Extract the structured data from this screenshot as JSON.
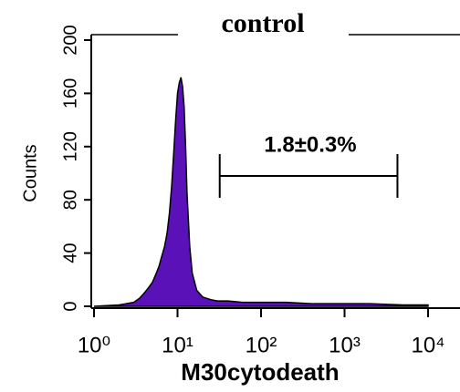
{
  "chart_data": {
    "type": "area",
    "title": "control",
    "xlabel": "M30cytodeath",
    "ylabel": "Counts",
    "annotation": "1.8±0.3%",
    "gate": [
      32,
      4300
    ],
    "xscale": "log",
    "color": "#5a12b8",
    "x": [
      1,
      2,
      3,
      3.5,
      4,
      4.5,
      5,
      5.5,
      6,
      6.5,
      7,
      7.5,
      8,
      8.5,
      9,
      9.5,
      10,
      10.5,
      11,
      11.5,
      12,
      12.5,
      13,
      14,
      15,
      17,
      20,
      25,
      30,
      40,
      60,
      100,
      200,
      400,
      1000,
      2000,
      5000,
      10000
    ],
    "values": [
      0,
      1,
      3,
      6,
      10,
      14,
      18,
      24,
      30,
      38,
      45,
      55,
      70,
      90,
      115,
      140,
      160,
      168,
      172,
      165,
      150,
      120,
      85,
      45,
      25,
      12,
      7,
      5,
      4,
      4,
      3,
      3,
      3,
      2,
      2,
      2,
      1,
      1
    ],
    "xlim": [
      1,
      10000
    ],
    "ylim": [
      0,
      200
    ],
    "xticks": [
      {
        "value": 1,
        "label": "10⁰"
      },
      {
        "value": 10,
        "label": "10¹"
      },
      {
        "value": 100,
        "label": "10²"
      },
      {
        "value": 1000,
        "label": "10³"
      },
      {
        "value": 10000,
        "label": "10⁴"
      }
    ],
    "yticks": [
      0,
      40,
      80,
      120,
      160,
      200
    ]
  }
}
